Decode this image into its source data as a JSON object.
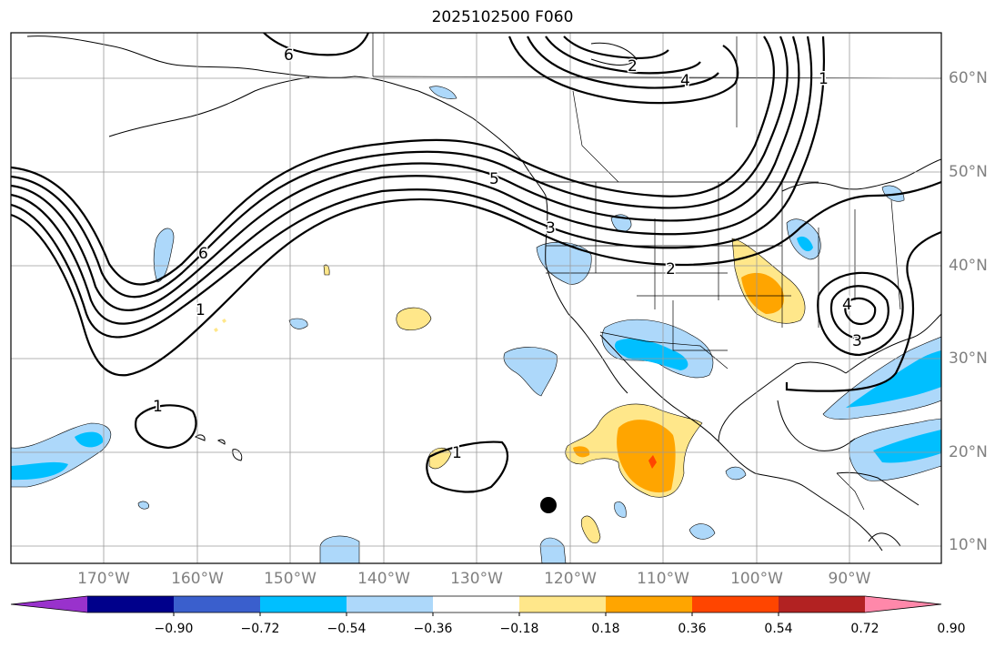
{
  "title": "2025102500 F060",
  "lat_labels": [
    "60°N",
    "50°N",
    "40°N",
    "30°N",
    "20°N",
    "10°N"
  ],
  "lon_labels": [
    "170°W",
    "160°W",
    "150°W",
    "140°W",
    "130°W",
    "120°W",
    "110°W",
    "100°W",
    "90°W"
  ],
  "colorbar": {
    "tick_labels": [
      "−0.90",
      "−0.72",
      "−0.54",
      "−0.36",
      "−0.18",
      "0.18",
      "0.36",
      "0.54",
      "0.72",
      "0.90"
    ],
    "colors": [
      "#9932cc",
      "#00008b",
      "#3a5fcd",
      "#00bfff",
      "#add8fa",
      "#ffffff",
      "#ffe78a",
      "#ffa500",
      "#ff4500",
      "#b22222",
      "#ff88aa"
    ]
  },
  "contour_labels": [
    "6",
    "2",
    "4",
    "1",
    "5",
    "3",
    "2",
    "6",
    "1",
    "4",
    "3",
    "1",
    "1"
  ]
}
